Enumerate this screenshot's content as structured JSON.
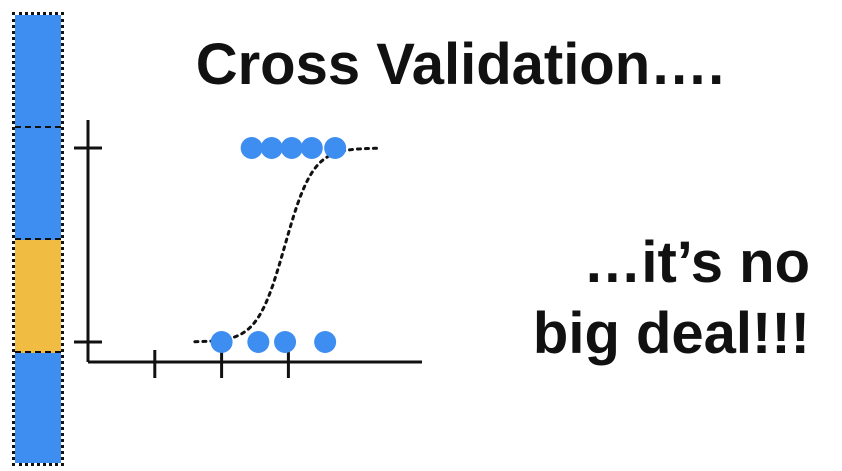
{
  "title": "Cross Validation….",
  "subtitle": {
    "line1": "…it’s no",
    "line2": "big deal!!!"
  },
  "colors": {
    "training_block": "#3d8ef0",
    "testing_block": "#f0bc42",
    "data_point": "#3d8ef0",
    "axis": "#111111"
  },
  "cv_blocks": [
    {
      "role": "training"
    },
    {
      "role": "training"
    },
    {
      "role": "testing"
    },
    {
      "role": "training"
    }
  ],
  "chart_data": {
    "type": "scatter",
    "xlim": [
      0,
      10
    ],
    "ylim": [
      0,
      1
    ],
    "x_ticks": [
      2,
      4,
      6
    ],
    "y_ticks": [
      0,
      1
    ],
    "series": [
      {
        "values": [
          {
            "x": 4.0,
            "y": 0
          },
          {
            "x": 5.1,
            "y": 0
          },
          {
            "x": 5.9,
            "y": 0
          },
          {
            "x": 7.1,
            "y": 0
          },
          {
            "x": 4.9,
            "y": 1
          },
          {
            "x": 5.5,
            "y": 1
          },
          {
            "x": 6.1,
            "y": 1
          },
          {
            "x": 6.7,
            "y": 1
          },
          {
            "x": 7.4,
            "y": 1
          }
        ]
      }
    ],
    "fit_curve": {
      "style": "dotted",
      "x_range": [
        3.2,
        8.7
      ],
      "midpoint": 5.9
    }
  }
}
